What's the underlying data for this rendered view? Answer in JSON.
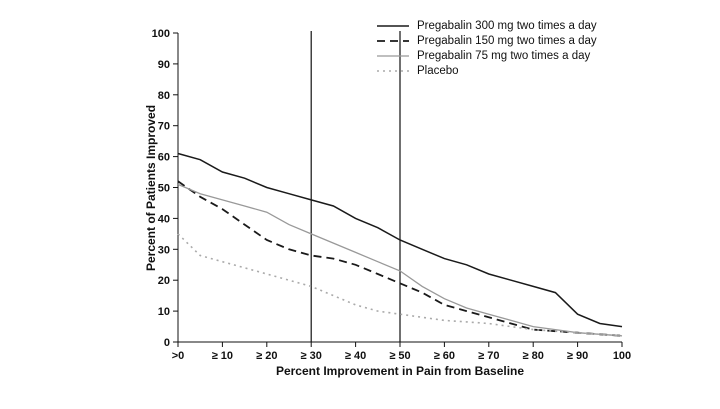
{
  "figure": {
    "background": "#ffffff"
  },
  "chart_data": {
    "type": "line",
    "title": "",
    "xlabel": "Percent Improvement in Pain from Baseline",
    "ylabel": "Percent of Patients Improved",
    "xlim": [
      0,
      100
    ],
    "ylim": [
      0,
      100
    ],
    "grid": false,
    "legend_position": "top-right",
    "x_ticks": [
      0,
      10,
      20,
      30,
      40,
      50,
      60,
      70,
      80,
      90,
      100
    ],
    "x_tick_labels": [
      ">0",
      "≥ 10",
      "≥ 20",
      "≥ 30",
      "≥ 40",
      "≥ 50",
      "≥ 60",
      "≥ 70",
      "≥ 80",
      "≥ 90",
      "100"
    ],
    "y_ticks": [
      0,
      10,
      20,
      30,
      40,
      50,
      60,
      70,
      80,
      90,
      100
    ],
    "reference_lines_x": [
      30,
      50
    ],
    "x": [
      0,
      5,
      10,
      15,
      20,
      25,
      30,
      35,
      40,
      45,
      50,
      55,
      60,
      65,
      70,
      75,
      80,
      85,
      90,
      95,
      100
    ],
    "series": [
      {
        "name": "Pregabalin 300 mg two times a day",
        "color": "#1a1a1a",
        "style": "solid",
        "width": 1.5,
        "values": [
          61,
          59,
          55,
          53,
          50,
          48,
          46,
          44,
          40,
          37,
          33,
          30,
          27,
          25,
          22,
          20,
          18,
          16,
          9,
          6,
          5
        ]
      },
      {
        "name": "Pregabalin 150 mg two times a day",
        "color": "#1a1a1a",
        "style": "dashed",
        "width": 1.8,
        "values": [
          52,
          47,
          43,
          38,
          33,
          30,
          28,
          27,
          25,
          22,
          19,
          16,
          12,
          10,
          8,
          6,
          4,
          3.5,
          3,
          2.5,
          2
        ]
      },
      {
        "name": "Pregabalin 75 mg two times a day",
        "color": "#999999",
        "style": "solid",
        "width": 1.3,
        "values": [
          51,
          48,
          46,
          44,
          42,
          38,
          35,
          32,
          29,
          26,
          23,
          18,
          14,
          11,
          9,
          7,
          5,
          4,
          3,
          2.5,
          2
        ]
      },
      {
        "name": "Placebo",
        "color": "#aaaaaa",
        "style": "dotted",
        "width": 1.6,
        "values": [
          35,
          28,
          26,
          24,
          22,
          20,
          18,
          15,
          12,
          10,
          9,
          8,
          7,
          6.5,
          6,
          5,
          4,
          3.5,
          3,
          2.5,
          2
        ]
      }
    ]
  }
}
